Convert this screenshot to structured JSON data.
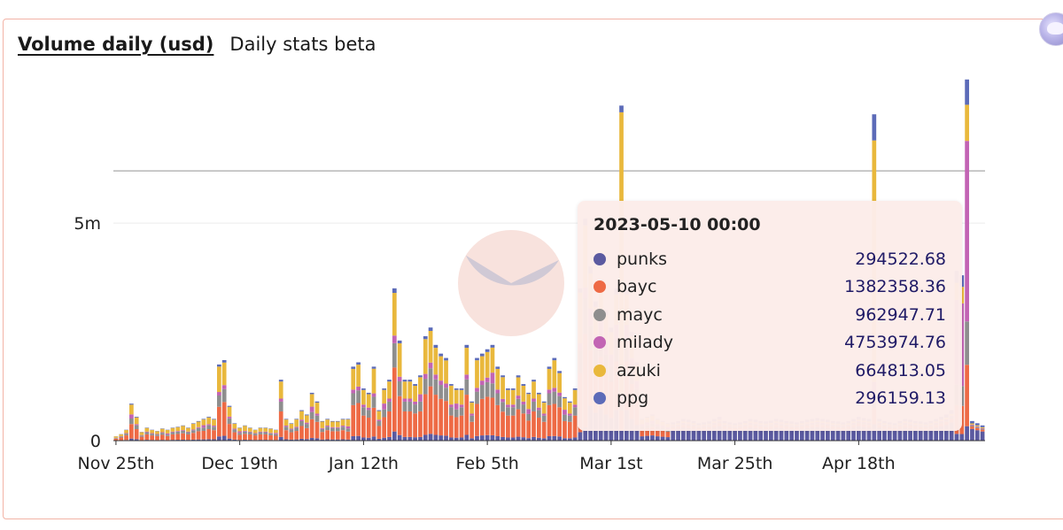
{
  "header": {
    "title_link": "Volume daily (usd)",
    "subtitle": "Daily stats beta"
  },
  "tooltip": {
    "date": "2023-05-10 00:00",
    "rows": [
      {
        "name": "punks",
        "value": "294522.68",
        "color": "#5b5aa0"
      },
      {
        "name": "bayc",
        "value": "1382358.36",
        "color": "#ee6a45"
      },
      {
        "name": "mayc",
        "value": "962947.71",
        "color": "#8e8e8e"
      },
      {
        "name": "milady",
        "value": "4753974.76",
        "color": "#c264b4"
      },
      {
        "name": "azuki",
        "value": "664813.05",
        "color": "#e9b83c"
      },
      {
        "name": "ppg",
        "value": "296159.13",
        "color": "#5c6bb8"
      }
    ]
  },
  "chart_data": {
    "type": "bar",
    "stacked": true,
    "x_ticks": [
      "Nov 25th",
      "Dec 19th",
      "Jan 12th",
      "Feb 5th",
      "Mar 1st",
      "Mar 25th",
      "Apr 18th"
    ],
    "y_ticks": [
      {
        "value": 0,
        "label": "0"
      },
      {
        "value": 5000000,
        "label": "5m"
      }
    ],
    "ylim": [
      0,
      8500000
    ],
    "days": 169,
    "reference_line": 6200000,
    "series_order": [
      "punks",
      "bayc",
      "mayc",
      "milady",
      "azuki",
      "ppg"
    ],
    "colors": {
      "punks": "#5b5aa0",
      "bayc": "#ee6a45",
      "mayc": "#8e8e8e",
      "milady": "#c264b4",
      "azuki": "#e9b83c",
      "ppg": "#5c6bb8"
    },
    "totals_m": [
      0.1,
      0.15,
      0.25,
      0.85,
      0.55,
      0.2,
      0.3,
      0.25,
      0.22,
      0.28,
      0.25,
      0.3,
      0.32,
      0.35,
      0.3,
      0.4,
      0.45,
      0.5,
      0.55,
      0.5,
      1.75,
      1.85,
      0.8,
      0.4,
      0.3,
      0.35,
      0.3,
      0.25,
      0.3,
      0.3,
      0.28,
      0.25,
      1.4,
      0.5,
      0.4,
      0.5,
      0.7,
      0.6,
      1.1,
      0.9,
      0.45,
      0.5,
      0.45,
      0.45,
      0.5,
      0.5,
      1.7,
      1.8,
      1.2,
      1.1,
      1.7,
      0.7,
      1.2,
      1.4,
      3.5,
      2.3,
      1.4,
      1.4,
      1.3,
      1.5,
      2.4,
      2.6,
      2.2,
      2.0,
      1.9,
      1.3,
      1.2,
      1.2,
      2.2,
      0.9,
      1.9,
      2.0,
      2.1,
      2.2,
      1.7,
      1.5,
      1.2,
      1.2,
      1.5,
      1.3,
      1.1,
      1.4,
      1.1,
      0.9,
      1.7,
      1.9,
      1.6,
      1.0,
      0.9,
      1.2,
      3.5,
      5.1,
      4.0,
      3.2,
      3.7,
      3.0,
      2.6,
      3.5,
      7.7,
      3.5,
      2.5,
      1.8,
      0.5,
      0.55,
      0.6,
      0.5,
      0.45,
      0.4,
      0.42,
      0.45,
      0.5,
      0.48,
      0.45,
      0.4,
      0.42,
      0.44,
      0.5,
      0.55,
      0.45,
      0.42,
      0.4,
      0.42,
      0.45,
      0.5,
      0.48,
      0.45,
      0.44,
      0.46,
      0.5,
      0.48,
      0.45,
      0.44,
      0.42,
      0.45,
      0.48,
      0.5,
      0.52,
      0.5,
      0.48,
      0.45,
      0.44,
      0.42,
      0.45,
      0.5,
      0.55,
      0.52,
      0.5,
      7.5,
      0.5,
      0.45,
      0.42,
      0.4,
      0.45,
      0.5,
      0.48,
      0.45,
      0.44,
      0.42,
      0.45,
      0.5,
      0.55,
      0.6,
      0.7,
      3.9,
      3.8,
      8.3,
      0.45,
      0.4,
      0.35
    ]
  }
}
